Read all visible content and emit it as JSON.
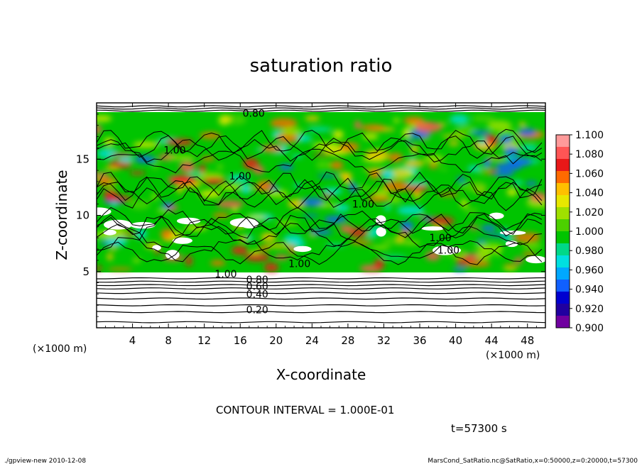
{
  "chart_data": {
    "type": "heatmap",
    "title": "saturation ratio",
    "xlabel": "X-coordinate",
    "ylabel": "Z-coordinate",
    "x_unit": "(×1000 m)",
    "y_unit": "(×1000 m)",
    "xlim": [
      0,
      50
    ],
    "ylim": [
      0,
      20
    ],
    "x_ticks": [
      4,
      8,
      12,
      16,
      20,
      24,
      28,
      32,
      36,
      40,
      44,
      48
    ],
    "y_ticks": [
      5,
      10,
      15
    ],
    "contour_interval_text": "CONTOUR INTERVAL = 1.000E-01",
    "time_text": "t=57300 s",
    "contour_labels": [
      {
        "text": "0.80",
        "x": 17.5,
        "z": 19.1
      },
      {
        "text": "1.00",
        "x": 8.7,
        "z": 15.8
      },
      {
        "text": "1.00",
        "x": 16.0,
        "z": 13.5
      },
      {
        "text": "1.00",
        "x": 29.7,
        "z": 11.0
      },
      {
        "text": "1.00",
        "x": 38.3,
        "z": 8.0
      },
      {
        "text": "1.00",
        "x": 39.2,
        "z": 6.9
      },
      {
        "text": "1.00",
        "x": 22.6,
        "z": 5.7
      },
      {
        "text": "1.00",
        "x": 14.4,
        "z": 4.8
      },
      {
        "text": "0.80",
        "x": 17.9,
        "z": 4.3
      },
      {
        "text": "0.60",
        "x": 17.9,
        "z": 3.7
      },
      {
        "text": "0.40",
        "x": 17.9,
        "z": 3.0
      },
      {
        "text": "0.20",
        "x": 17.9,
        "z": 1.6
      }
    ],
    "colorbar": {
      "ticks": [
        "1.100",
        "1.080",
        "1.060",
        "1.040",
        "1.020",
        "1.000",
        "0.980",
        "0.960",
        "0.940",
        "0.920",
        "0.900"
      ],
      "colors": [
        "#ff9a9a",
        "#ff5555",
        "#e81818",
        "#ff6a00",
        "#ffc000",
        "#e8e800",
        "#a0e000",
        "#4cd000",
        "#00c400",
        "#00d888",
        "#00e0e0",
        "#00a8ff",
        "#1060ff",
        "#0000d0",
        "#2000a0",
        "#7000a0"
      ]
    }
  },
  "footer": {
    "left": "./gpview-new   2010-12-08",
    "right": "MarsCond_SatRatio.nc@SatRatio,x=0:50000,z=0:20000,t=57300"
  }
}
